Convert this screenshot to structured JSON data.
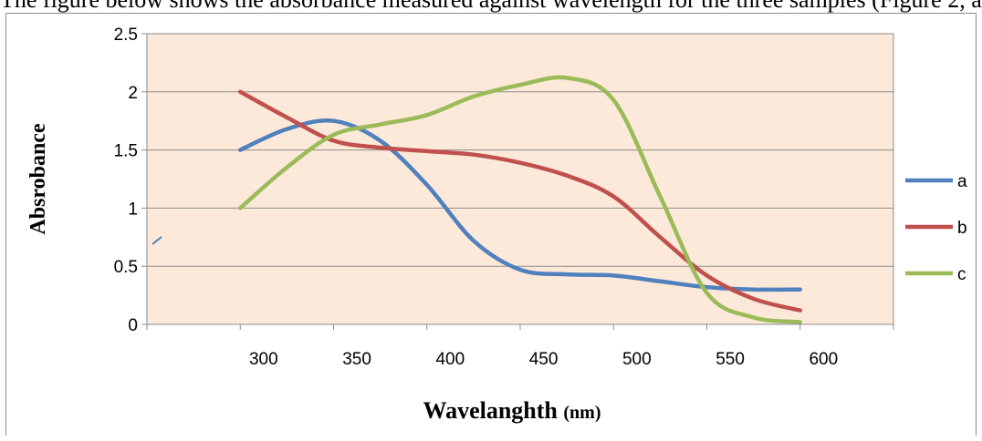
{
  "caption": "The figure below shows the absorbance measured against wavelength for the three samples (Figure 2, a)",
  "chart_data": {
    "type": "line",
    "title": "",
    "xlabel": "Wavelanghth",
    "xlabel_unit": "(nm)",
    "ylabel": "Absrobance",
    "x": [
      300,
      325,
      350,
      375,
      400,
      425,
      450,
      475,
      500,
      525,
      550,
      575,
      600
    ],
    "xlim": [
      250,
      650
    ],
    "ylim": [
      0,
      2.5
    ],
    "x_ticks": [
      "300",
      "350",
      "400",
      "450",
      "500",
      "550",
      "600"
    ],
    "y_ticks": [
      "0",
      "0.5",
      "1",
      "1.5",
      "2",
      "2.5"
    ],
    "grid": "horizontal",
    "legend_position": "right",
    "series": [
      {
        "name": "a",
        "color": "#4f81bd",
        "values": [
          1.5,
          1.68,
          1.75,
          1.58,
          1.2,
          0.72,
          0.47,
          0.43,
          0.42,
          0.37,
          0.32,
          0.3,
          0.3
        ]
      },
      {
        "name": "b",
        "color": "#c0504d",
        "values": [
          2.0,
          1.78,
          1.58,
          1.52,
          1.49,
          1.46,
          1.39,
          1.28,
          1.1,
          0.75,
          0.42,
          0.22,
          0.12
        ]
      },
      {
        "name": "c",
        "color": "#9bbb59",
        "values": [
          1.0,
          1.35,
          1.63,
          1.72,
          1.8,
          1.96,
          2.06,
          2.12,
          1.93,
          1.1,
          0.27,
          0.06,
          0.02
        ]
      }
    ],
    "plot_background": "#fde9d9"
  }
}
